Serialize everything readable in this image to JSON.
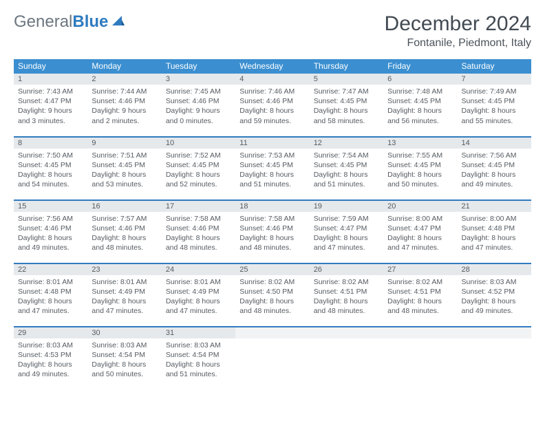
{
  "brand": {
    "part1": "General",
    "part2": "Blue"
  },
  "title": "December 2024",
  "location": "Fontanile, Piedmont, Italy",
  "colors": {
    "header_bg": "#3b8fd0",
    "row_divider": "#2f7bbf",
    "daynum_bg": "#e6e9ec",
    "text": "#555b61",
    "logo_gray": "#6b7680",
    "logo_blue": "#2f7bbf",
    "empty_bg": "#f2f3f4"
  },
  "weekday_headers": [
    "Sunday",
    "Monday",
    "Tuesday",
    "Wednesday",
    "Thursday",
    "Friday",
    "Saturday"
  ],
  "weeks": [
    [
      {
        "num": "1",
        "sunrise": "Sunrise: 7:43 AM",
        "sunset": "Sunset: 4:47 PM",
        "daylight": "Daylight: 9 hours and 3 minutes."
      },
      {
        "num": "2",
        "sunrise": "Sunrise: 7:44 AM",
        "sunset": "Sunset: 4:46 PM",
        "daylight": "Daylight: 9 hours and 2 minutes."
      },
      {
        "num": "3",
        "sunrise": "Sunrise: 7:45 AM",
        "sunset": "Sunset: 4:46 PM",
        "daylight": "Daylight: 9 hours and 0 minutes."
      },
      {
        "num": "4",
        "sunrise": "Sunrise: 7:46 AM",
        "sunset": "Sunset: 4:46 PM",
        "daylight": "Daylight: 8 hours and 59 minutes."
      },
      {
        "num": "5",
        "sunrise": "Sunrise: 7:47 AM",
        "sunset": "Sunset: 4:45 PM",
        "daylight": "Daylight: 8 hours and 58 minutes."
      },
      {
        "num": "6",
        "sunrise": "Sunrise: 7:48 AM",
        "sunset": "Sunset: 4:45 PM",
        "daylight": "Daylight: 8 hours and 56 minutes."
      },
      {
        "num": "7",
        "sunrise": "Sunrise: 7:49 AM",
        "sunset": "Sunset: 4:45 PM",
        "daylight": "Daylight: 8 hours and 55 minutes."
      }
    ],
    [
      {
        "num": "8",
        "sunrise": "Sunrise: 7:50 AM",
        "sunset": "Sunset: 4:45 PM",
        "daylight": "Daylight: 8 hours and 54 minutes."
      },
      {
        "num": "9",
        "sunrise": "Sunrise: 7:51 AM",
        "sunset": "Sunset: 4:45 PM",
        "daylight": "Daylight: 8 hours and 53 minutes."
      },
      {
        "num": "10",
        "sunrise": "Sunrise: 7:52 AM",
        "sunset": "Sunset: 4:45 PM",
        "daylight": "Daylight: 8 hours and 52 minutes."
      },
      {
        "num": "11",
        "sunrise": "Sunrise: 7:53 AM",
        "sunset": "Sunset: 4:45 PM",
        "daylight": "Daylight: 8 hours and 51 minutes."
      },
      {
        "num": "12",
        "sunrise": "Sunrise: 7:54 AM",
        "sunset": "Sunset: 4:45 PM",
        "daylight": "Daylight: 8 hours and 51 minutes."
      },
      {
        "num": "13",
        "sunrise": "Sunrise: 7:55 AM",
        "sunset": "Sunset: 4:45 PM",
        "daylight": "Daylight: 8 hours and 50 minutes."
      },
      {
        "num": "14",
        "sunrise": "Sunrise: 7:56 AM",
        "sunset": "Sunset: 4:45 PM",
        "daylight": "Daylight: 8 hours and 49 minutes."
      }
    ],
    [
      {
        "num": "15",
        "sunrise": "Sunrise: 7:56 AM",
        "sunset": "Sunset: 4:46 PM",
        "daylight": "Daylight: 8 hours and 49 minutes."
      },
      {
        "num": "16",
        "sunrise": "Sunrise: 7:57 AM",
        "sunset": "Sunset: 4:46 PM",
        "daylight": "Daylight: 8 hours and 48 minutes."
      },
      {
        "num": "17",
        "sunrise": "Sunrise: 7:58 AM",
        "sunset": "Sunset: 4:46 PM",
        "daylight": "Daylight: 8 hours and 48 minutes."
      },
      {
        "num": "18",
        "sunrise": "Sunrise: 7:58 AM",
        "sunset": "Sunset: 4:46 PM",
        "daylight": "Daylight: 8 hours and 48 minutes."
      },
      {
        "num": "19",
        "sunrise": "Sunrise: 7:59 AM",
        "sunset": "Sunset: 4:47 PM",
        "daylight": "Daylight: 8 hours and 47 minutes."
      },
      {
        "num": "20",
        "sunrise": "Sunrise: 8:00 AM",
        "sunset": "Sunset: 4:47 PM",
        "daylight": "Daylight: 8 hours and 47 minutes."
      },
      {
        "num": "21",
        "sunrise": "Sunrise: 8:00 AM",
        "sunset": "Sunset: 4:48 PM",
        "daylight": "Daylight: 8 hours and 47 minutes."
      }
    ],
    [
      {
        "num": "22",
        "sunrise": "Sunrise: 8:01 AM",
        "sunset": "Sunset: 4:48 PM",
        "daylight": "Daylight: 8 hours and 47 minutes."
      },
      {
        "num": "23",
        "sunrise": "Sunrise: 8:01 AM",
        "sunset": "Sunset: 4:49 PM",
        "daylight": "Daylight: 8 hours and 47 minutes."
      },
      {
        "num": "24",
        "sunrise": "Sunrise: 8:01 AM",
        "sunset": "Sunset: 4:49 PM",
        "daylight": "Daylight: 8 hours and 47 minutes."
      },
      {
        "num": "25",
        "sunrise": "Sunrise: 8:02 AM",
        "sunset": "Sunset: 4:50 PM",
        "daylight": "Daylight: 8 hours and 48 minutes."
      },
      {
        "num": "26",
        "sunrise": "Sunrise: 8:02 AM",
        "sunset": "Sunset: 4:51 PM",
        "daylight": "Daylight: 8 hours and 48 minutes."
      },
      {
        "num": "27",
        "sunrise": "Sunrise: 8:02 AM",
        "sunset": "Sunset: 4:51 PM",
        "daylight": "Daylight: 8 hours and 48 minutes."
      },
      {
        "num": "28",
        "sunrise": "Sunrise: 8:03 AM",
        "sunset": "Sunset: 4:52 PM",
        "daylight": "Daylight: 8 hours and 49 minutes."
      }
    ],
    [
      {
        "num": "29",
        "sunrise": "Sunrise: 8:03 AM",
        "sunset": "Sunset: 4:53 PM",
        "daylight": "Daylight: 8 hours and 49 minutes."
      },
      {
        "num": "30",
        "sunrise": "Sunrise: 8:03 AM",
        "sunset": "Sunset: 4:54 PM",
        "daylight": "Daylight: 8 hours and 50 minutes."
      },
      {
        "num": "31",
        "sunrise": "Sunrise: 8:03 AM",
        "sunset": "Sunset: 4:54 PM",
        "daylight": "Daylight: 8 hours and 51 minutes."
      },
      null,
      null,
      null,
      null
    ]
  ]
}
